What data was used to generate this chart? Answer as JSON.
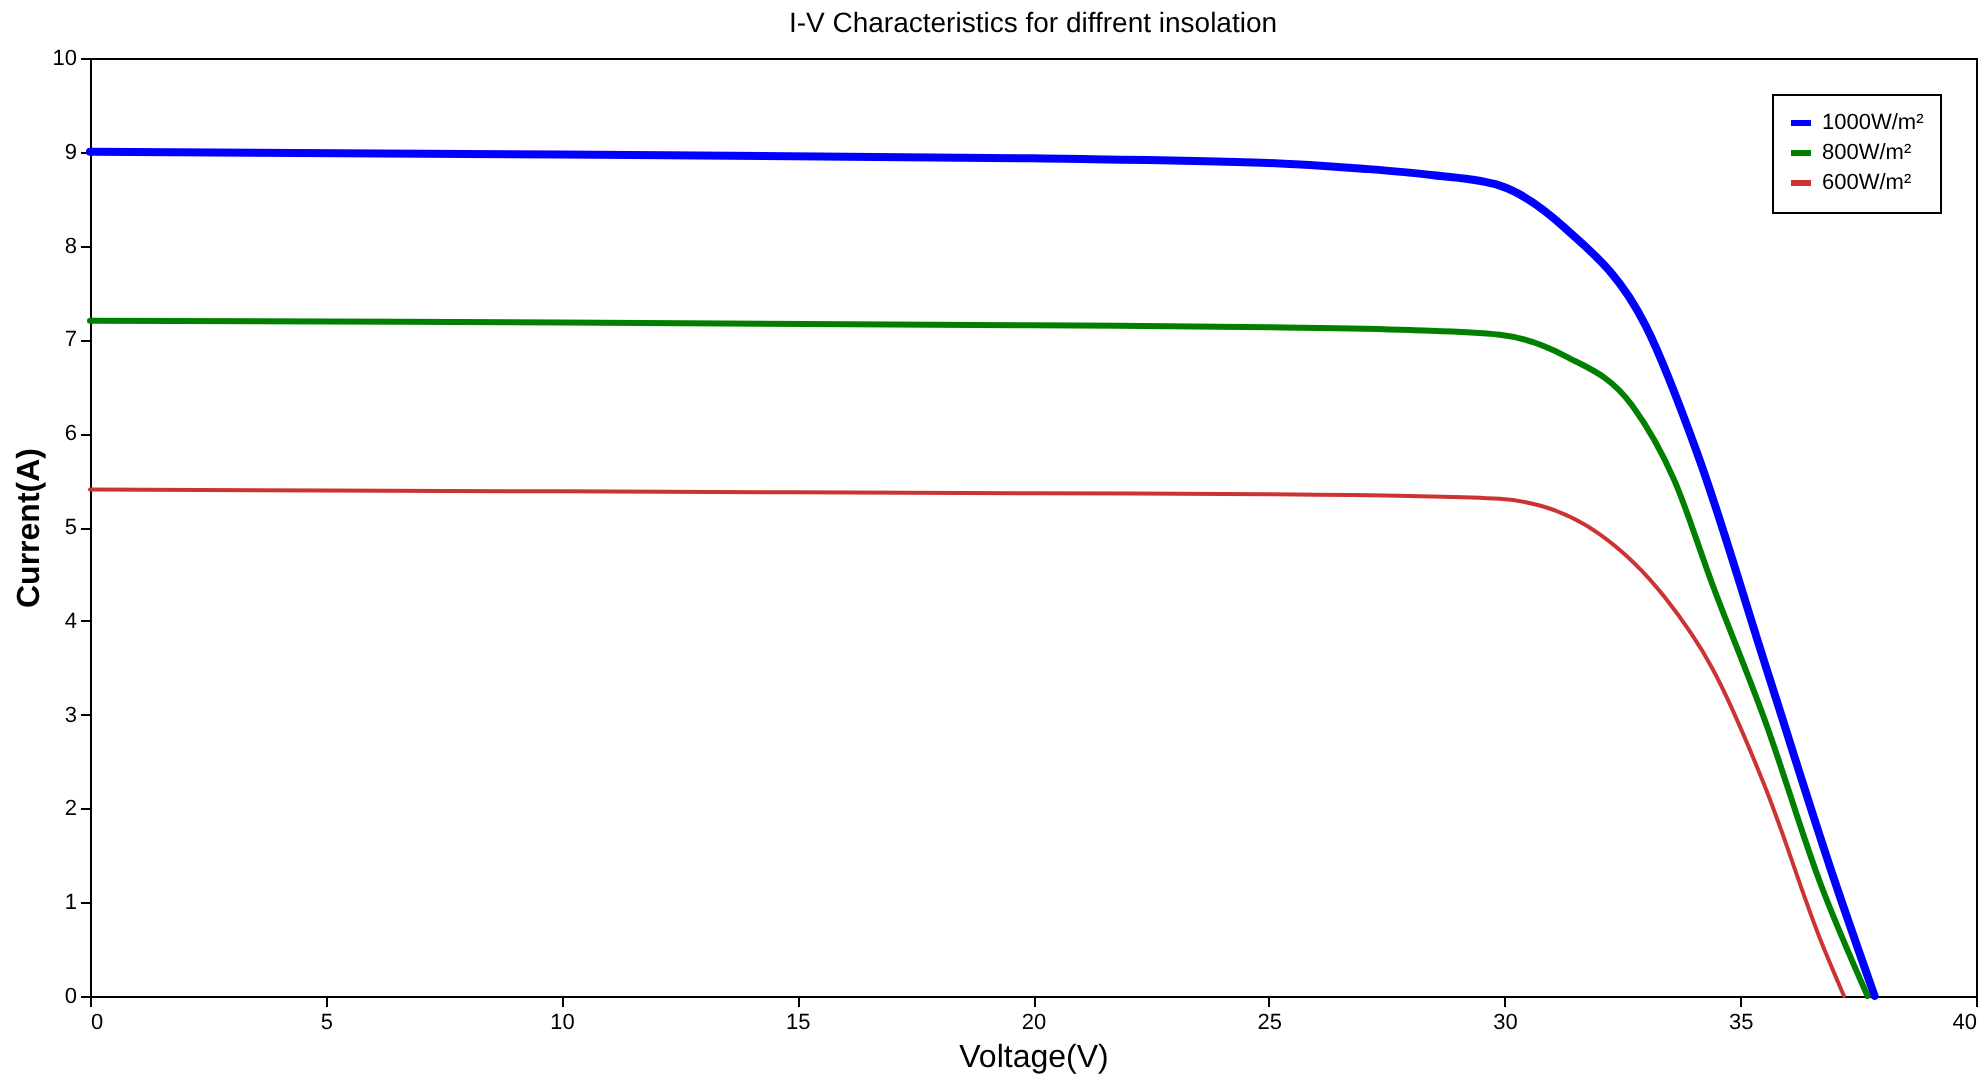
{
  "chart_data": {
    "type": "line",
    "title": "I-V Characteristics for diffrent insolation",
    "xlabel": "Voltage(V)",
    "ylabel": "Current(A)",
    "xlim": [
      0,
      40
    ],
    "xticks": [
      0,
      5,
      10,
      15,
      20,
      25,
      30,
      35,
      40
    ],
    "ylim": [
      0,
      10
    ],
    "yticks": [
      0,
      1,
      2,
      3,
      4,
      5,
      6,
      7,
      8,
      9,
      10
    ],
    "grid": false,
    "legend": "top right",
    "marker": "none",
    "line_style": "solid",
    "series": [
      {
        "name": "1000W/m²",
        "color": "#0000ff",
        "x": [
          0,
          10,
          20,
          25,
          27,
          28.5,
          29.9,
          31.3,
          33.0,
          34.1,
          35.55,
          37.0,
          37.85
        ],
        "values": [
          9.0,
          8.97,
          8.93,
          8.88,
          8.82,
          8.75,
          8.64,
          8.18,
          7.14,
          5.77,
          3.5,
          1.23,
          0
        ]
      },
      {
        "name": "800W/m²",
        "color": "#007f00",
        "x": [
          0,
          10,
          20,
          25,
          28,
          29.9,
          31.3,
          32.7,
          33.6,
          34.4,
          35.55,
          36.7,
          37.7
        ],
        "values": [
          7.2,
          7.18,
          7.15,
          7.13,
          7.1,
          7.05,
          6.82,
          6.3,
          5.5,
          4.4,
          2.9,
          1.2,
          0
        ]
      },
      {
        "name": "600W/m²",
        "color": "#cc3333",
        "x": [
          0,
          10,
          20,
          25,
          28,
          29.9,
          32.0,
          33.4,
          34.4,
          35.55,
          36.7,
          37.2
        ],
        "values": [
          5.4,
          5.38,
          5.36,
          5.35,
          5.33,
          5.3,
          4.93,
          4.25,
          3.5,
          2.2,
          0.6,
          0
        ]
      }
    ]
  }
}
